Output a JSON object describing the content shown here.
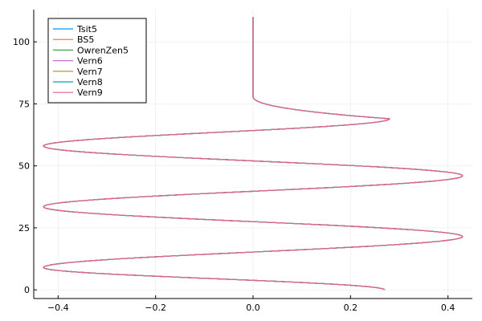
{
  "chart_data": {
    "type": "line",
    "title": "",
    "xlabel": "",
    "ylabel": "",
    "xlim": [
      -0.45,
      0.45
    ],
    "ylim": [
      -3.5,
      113
    ],
    "x_ticks": [
      -0.4,
      -0.2,
      0.0,
      0.2,
      0.4
    ],
    "x_tick_labels": [
      "−0.4",
      "−0.2",
      "0.0",
      "0.2",
      "0.4"
    ],
    "y_ticks": [
      0,
      25,
      50,
      75,
      100
    ],
    "y_tick_labels": [
      "0",
      "25",
      "50",
      "75",
      "100"
    ],
    "grid": true,
    "legend_position": "top-left",
    "curve": {
      "start_x": 0.27,
      "start_y": 0,
      "peaks": [
        {
          "x": -0.43,
          "y": 9
        },
        {
          "x": 0.43,
          "y": 21.5
        },
        {
          "x": -0.43,
          "y": 33.5
        },
        {
          "x": 0.43,
          "y": 46
        },
        {
          "x": -0.43,
          "y": 58
        },
        {
          "x": 0.28,
          "y": 69
        }
      ],
      "settle_y": 78,
      "end_x": 0.0,
      "end_y": 110
    },
    "series": [
      {
        "name": "Tsit5",
        "color": "#009AFA"
      },
      {
        "name": "BS5",
        "color": "#E36F47"
      },
      {
        "name": "OwrenZen5",
        "color": "#3EA44E"
      },
      {
        "name": "Vern6",
        "color": "#C371D2"
      },
      {
        "name": "Vern7",
        "color": "#AC8E18"
      },
      {
        "name": "Vern8",
        "color": "#00A9AD"
      },
      {
        "name": "Vern9",
        "color": "#ED5E93"
      }
    ]
  }
}
